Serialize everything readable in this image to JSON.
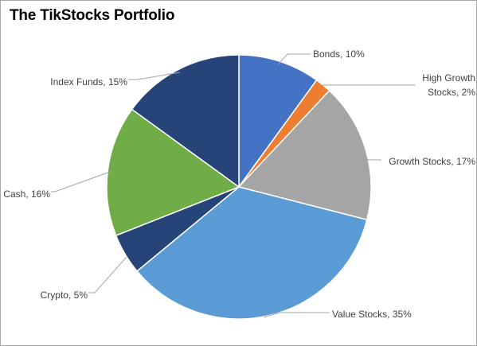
{
  "chart_data": {
    "type": "pie",
    "title": "The TikStocks Portfolio",
    "legend": "none",
    "slices": [
      {
        "label": "Bonds",
        "value": 10,
        "label_lines": [
          "Bonds, 10%"
        ],
        "color": "#4472c4"
      },
      {
        "label": "High Growth Stocks",
        "value": 2,
        "label_lines": [
          "High Growth",
          "Stocks, 2%"
        ],
        "color": "#ed7d31"
      },
      {
        "label": "Growth Stocks",
        "value": 17,
        "label_lines": [
          "Growth Stocks, 17%"
        ],
        "color": "#a5a5a5"
      },
      {
        "label": "Value Stocks",
        "value": 35,
        "label_lines": [
          "Value Stocks, 35%"
        ],
        "color": "#5b9bd5"
      },
      {
        "label": "Crypto",
        "value": 5,
        "label_lines": [
          "Crypto, 5%"
        ],
        "color": "#264478"
      },
      {
        "label": "Cash",
        "value": 16,
        "label_lines": [
          "Cash, 16%"
        ],
        "color": "#70ad47"
      },
      {
        "label": "Index Funds",
        "value": 15,
        "label_lines": [
          "Index Funds, 15%"
        ],
        "color": "#264478"
      }
    ]
  }
}
